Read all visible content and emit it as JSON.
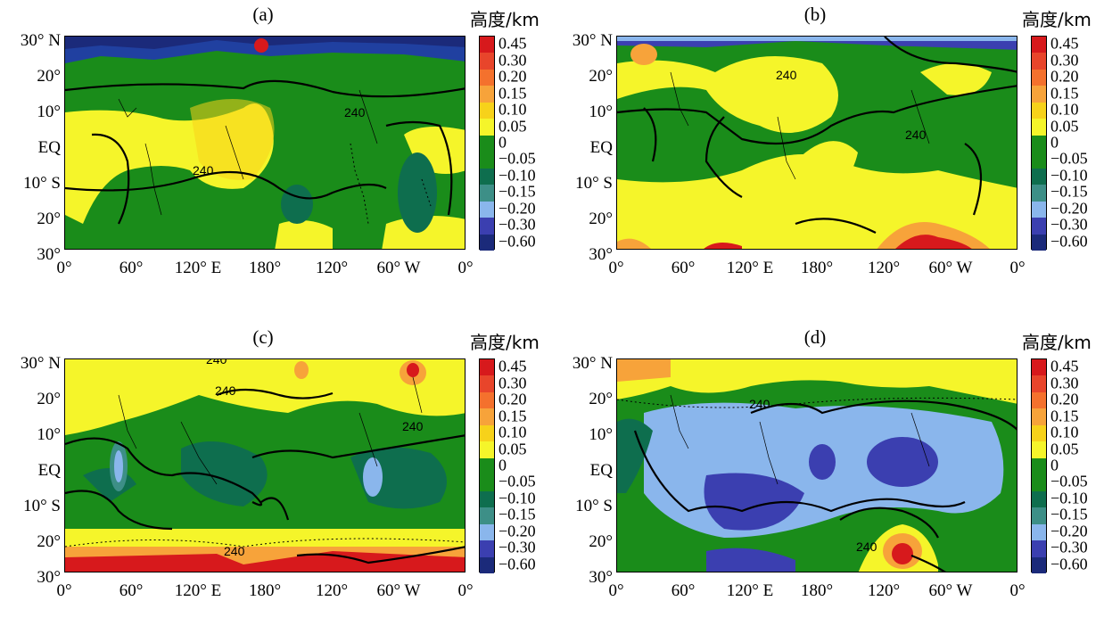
{
  "legend_title": "高度/km",
  "legend_levels": [
    "0.45",
    "0.30",
    "0.20",
    "0.15",
    "0.10",
    "0.05",
    "0",
    "−0.05",
    "−0.10",
    "−0.15",
    "−0.20",
    "−0.30",
    "−0.60"
  ],
  "legend_colors": [
    "#d7191c",
    "#e8452b",
    "#f4712d",
    "#f7a33a",
    "#f7d21a",
    "#f5f52a",
    "#1a8c1a",
    "#1a8c1a",
    "#0e6e4e",
    "#3d8f87",
    "#8ab6ec",
    "#3b3fb0",
    "#1b2a7a"
  ],
  "y_labels": [
    "30° N",
    "20°",
    "10°",
    "EQ",
    "10° S",
    "20°",
    "30°"
  ],
  "x_labels": [
    "0°",
    "60°",
    "120° E",
    "180°",
    "120°",
    "60° W",
    "0°"
  ],
  "contour_label": "240",
  "panels": [
    {
      "title": "(a)"
    },
    {
      "title": "(b)"
    },
    {
      "title": "(c)"
    },
    {
      "title": "(d)"
    }
  ]
}
